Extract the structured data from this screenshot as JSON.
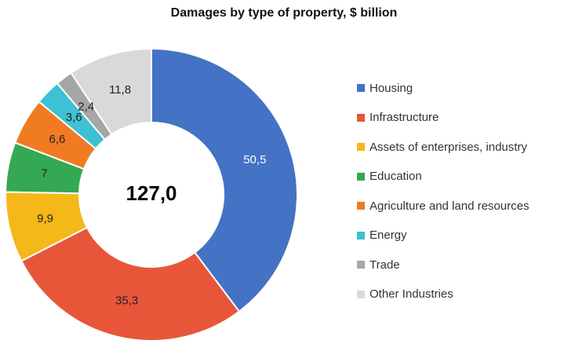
{
  "chart_data": {
    "type": "pie",
    "title": "Damages by type of property, $ billion",
    "total_label": "127,0",
    "slices": [
      {
        "name": "Housing",
        "value": 50.5,
        "label": "50,5",
        "color": "#4472C4"
      },
      {
        "name": "Infrastructure",
        "value": 35.3,
        "label": "35,3",
        "color": "#E8563A"
      },
      {
        "name": "Assets of enterprises, industry",
        "value": 9.9,
        "label": "9,9",
        "color": "#F5B819"
      },
      {
        "name": "Education",
        "value": 7.0,
        "label": "7",
        "color": "#34A853"
      },
      {
        "name": "Agriculture and land resources",
        "value": 6.6,
        "label": "6,6",
        "color": "#F07B22"
      },
      {
        "name": "Energy",
        "value": 3.6,
        "label": "3,6",
        "color": "#3EC1D3"
      },
      {
        "name": "Trade",
        "value": 2.4,
        "label": "2,4",
        "color": "#A6A6A6"
      },
      {
        "name": "Other Industries",
        "value": 11.8,
        "label": "11,8",
        "color": "#D9D9D9"
      }
    ],
    "legend_position": "right"
  }
}
